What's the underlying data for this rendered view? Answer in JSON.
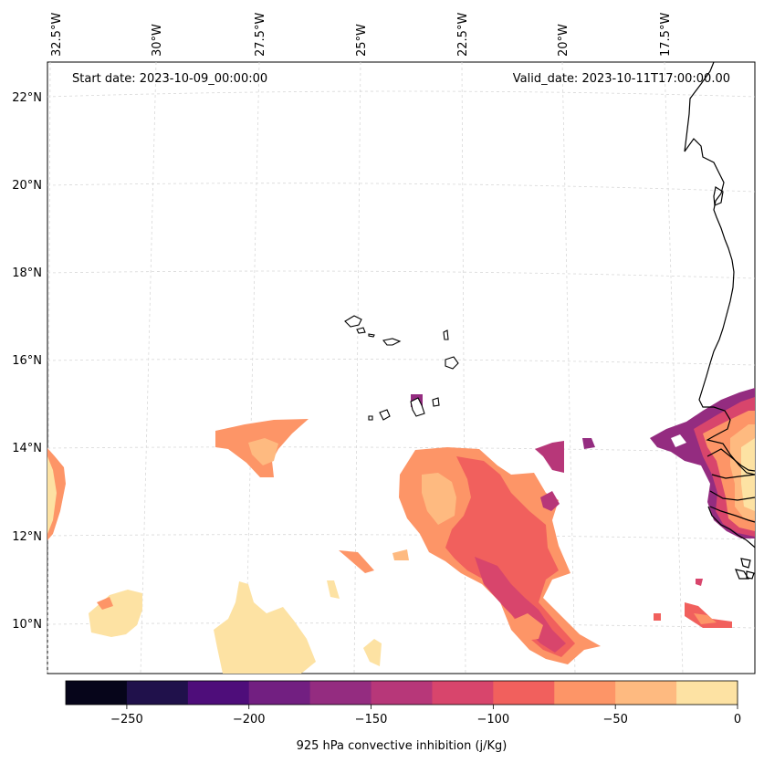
{
  "header": {
    "start_date": "Start date: 2023-10-09_00:00:00",
    "valid_date": "Valid_date: 2023-10-11T17:00:00.00"
  },
  "longitude_labels": [
    "32.5°W",
    "30°W",
    "27.5°W",
    "25°W",
    "22.5°W",
    "20°W",
    "17.5°W"
  ],
  "latitude_labels": [
    "22°N",
    "20°N",
    "18°N",
    "16°N",
    "14°N",
    "12°N",
    "10°N"
  ],
  "colorbar": {
    "label": "925 hPa convective inhibition (j/Kg)",
    "tick_labels": [
      "−250",
      "−200",
      "−150",
      "−100",
      "−50",
      "0"
    ],
    "levels": [
      -275,
      -250,
      -225,
      -200,
      -175,
      -150,
      -125,
      -100,
      -75,
      -50,
      -25,
      0
    ],
    "colors": [
      "#06051a",
      "#20114b",
      "#4e0d7a",
      "#721f81",
      "#942c80",
      "#b73779",
      "#d8456c",
      "#f1605d",
      "#fd9567",
      "#feba80",
      "#fde2a3"
    ]
  },
  "colors": {
    "background": "#ffffff",
    "grid": "#d8d8d8",
    "coast": "#000000"
  }
}
